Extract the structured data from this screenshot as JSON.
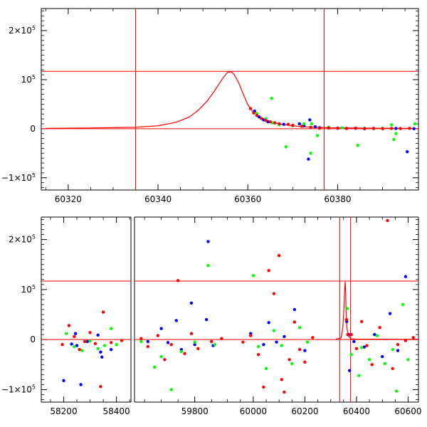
{
  "chart_data": [
    {
      "type": "scatter",
      "title": "",
      "xlabel": "",
      "ylabel": "",
      "xlim": [
        60314,
        60398
      ],
      "ylim": [
        -125000,
        245000
      ],
      "x_ticks": [
        {
          "value": 60320,
          "label": "60320"
        },
        {
          "value": 60340,
          "label": "60340"
        },
        {
          "value": 60360,
          "label": "60360"
        },
        {
          "value": 60380,
          "label": "60380"
        }
      ],
      "y_ticks": [
        {
          "value": 200000,
          "label": "2×10",
          "exp": "5"
        },
        {
          "value": 100000,
          "label": "10",
          "exp": "5"
        },
        {
          "value": 0,
          "label": "0",
          "exp": ""
        },
        {
          "value": -100000,
          "label": "−1×10",
          "exp": "5"
        }
      ],
      "hlines": [
        117000,
        0
      ],
      "vlines": [
        60335,
        60377
      ],
      "model_curve": {
        "color": "#ff0000",
        "points": [
          [
            60315,
            800
          ],
          [
            60325,
            1500
          ],
          [
            60335,
            3000
          ],
          [
            60340,
            6000
          ],
          [
            60344,
            13000
          ],
          [
            60347,
            24000
          ],
          [
            60349,
            38000
          ],
          [
            60351,
            57000
          ],
          [
            60352.5,
            76000
          ],
          [
            60353.5,
            90000
          ],
          [
            60354.5,
            104000
          ],
          [
            60355.5,
            115000
          ],
          [
            60356.3,
            116000
          ],
          [
            60357,
            110000
          ],
          [
            60358,
            93000
          ],
          [
            60359,
            70000
          ],
          [
            60360,
            49000
          ],
          [
            60361,
            36000
          ],
          [
            60363,
            22000
          ],
          [
            60365,
            14000
          ],
          [
            60368,
            8000
          ],
          [
            60372,
            4000
          ],
          [
            60378,
            2000
          ],
          [
            60388,
            1000
          ],
          [
            60397,
            800
          ]
        ]
      },
      "series": [
        {
          "color": "#0000ff",
          "points": [
            [
              60361.5,
              36000
            ],
            [
              60362.5,
              24000
            ],
            [
              60363.5,
              18000
            ],
            [
              60364.5,
              14000
            ],
            [
              60366,
              12000
            ],
            [
              60368,
              9000
            ],
            [
              60370,
              7000
            ],
            [
              60371.5,
              10000
            ],
            [
              60372.5,
              6000
            ],
            [
              60373.5,
              -62000
            ],
            [
              60373.8,
              18000
            ],
            [
              60375,
              4000
            ],
            [
              60376,
              2000
            ],
            [
              60378,
              2000
            ],
            [
              60380,
              1000
            ],
            [
              60382,
              500
            ],
            [
              60384,
              1000
            ],
            [
              60386,
              0
            ],
            [
              60388,
              500
            ],
            [
              60390,
              800
            ],
            [
              60393,
              600
            ],
            [
              60395.5,
              -47000
            ],
            [
              60397,
              0
            ]
          ]
        },
        {
          "color": "#00ff00",
          "points": [
            [
              60362,
              31000
            ],
            [
              60364,
              20000
            ],
            [
              60365.3,
              62000
            ],
            [
              60365.5,
              12000
            ],
            [
              60367,
              8000
            ],
            [
              60368.5,
              -37000
            ],
            [
              60370,
              6000
            ],
            [
              60372.5,
              10000
            ],
            [
              60374,
              -50000
            ],
            [
              60374.2,
              10000
            ],
            [
              60375.5,
              -14000
            ],
            [
              60378,
              3000
            ],
            [
              60381,
              2000
            ],
            [
              60384.5,
              -34000
            ],
            [
              60386,
              1000
            ],
            [
              60388,
              0
            ],
            [
              60390,
              1000
            ],
            [
              60392,
              8000
            ],
            [
              60392.5,
              -22000
            ],
            [
              60393,
              -10000
            ],
            [
              60397.2,
              10000
            ]
          ]
        },
        {
          "color": "#ff0000",
          "points": [
            [
              60360.6,
              41000
            ],
            [
              60361.3,
              32000
            ],
            [
              60362,
              27000
            ],
            [
              60363,
              21000
            ],
            [
              60364,
              17000
            ],
            [
              60365,
              14000
            ],
            [
              60366,
              12000
            ],
            [
              60367,
              10000
            ],
            [
              60369,
              9000
            ],
            [
              60370,
              7000
            ],
            [
              60372,
              5000
            ],
            [
              60374,
              3000
            ],
            [
              60376,
              1000
            ],
            [
              60378,
              1500
            ],
            [
              60380,
              1000
            ],
            [
              60382,
              500
            ],
            [
              60384,
              800
            ],
            [
              60386,
              200
            ],
            [
              60388,
              500
            ],
            [
              60390,
              0
            ],
            [
              60392,
              600
            ],
            [
              60394,
              400
            ],
            [
              60396,
              800
            ]
          ]
        }
      ]
    },
    {
      "type": "scatter",
      "title": "",
      "xlabel": "",
      "ylabel": "",
      "ylim": [
        -125000,
        245000
      ],
      "y_ticks": [
        {
          "value": 200000,
          "label": "2×10",
          "exp": "5"
        },
        {
          "value": 100000,
          "label": "10",
          "exp": "5"
        },
        {
          "value": 0,
          "label": "0",
          "exp": ""
        },
        {
          "value": -100000,
          "label": "−1×10",
          "exp": "5"
        }
      ],
      "segments": [
        {
          "xlim": [
            58115,
            58455
          ],
          "x_ticks": [
            {
              "value": 58200,
              "label": "58200"
            },
            {
              "value": 58400,
              "label": "58400"
            }
          ]
        },
        {
          "xlim": [
            59620,
            59890
          ],
          "x_ticks": [
            {
              "value": 59800,
              "label": "59800"
            }
          ]
        },
        {
          "xlim": [
            59890,
            60640
          ],
          "x_ticks": [
            {
              "value": 60000,
              "label": "60000"
            },
            {
              "value": 60200,
              "label": "60200"
            },
            {
              "value": 60400,
              "label": "60400"
            },
            {
              "value": 60600,
              "label": "60600"
            }
          ]
        }
      ],
      "hlines": [
        117000,
        0
      ],
      "vlines": [
        60335,
        60377
      ],
      "model_curve": {
        "color": "#ff0000",
        "points": [
          [
            60320,
            1000
          ],
          [
            60340,
            3000
          ],
          [
            60347,
            24000
          ],
          [
            60352,
            70000
          ],
          [
            60354,
            100000
          ],
          [
            60356,
            116000
          ],
          [
            60358,
            93000
          ],
          [
            60360,
            49000
          ],
          [
            60363,
            22000
          ],
          [
            60370,
            6000
          ],
          [
            60380,
            1500
          ],
          [
            60400,
            800
          ],
          [
            60640,
            500
          ]
        ]
      },
      "series": [
        {
          "color": "#0000ff",
          "points": [
            [
              58200,
              -82000
            ],
            [
              58230,
              -9000
            ],
            [
              58245,
              12000
            ],
            [
              58250,
              -12000
            ],
            [
              58265,
              -90000
            ],
            [
              58290,
              -4000
            ],
            [
              58330,
              9000
            ],
            [
              58340,
              -25000
            ],
            [
              58345,
              -35000
            ],
            [
              58380,
              -20000
            ],
            [
              59660,
              -4000
            ],
            [
              59700,
              22000
            ],
            [
              59720,
              -6000
            ],
            [
              59745,
              38000
            ],
            [
              59760,
              -20000
            ],
            [
              59790,
              73000
            ],
            [
              59800,
              -10000
            ],
            [
              59835,
              40000
            ],
            [
              59840,
              196000
            ],
            [
              59855,
              -12000
            ],
            [
              59990,
              12000
            ],
            [
              60040,
              -10000
            ],
            [
              60060,
              34000
            ],
            [
              60090,
              -5000
            ],
            [
              60120,
              6000
            ],
            [
              60160,
              60000
            ],
            [
              60200,
              -22000
            ],
            [
              60362,
              36000
            ],
            [
              60370,
              10000
            ],
            [
              60373,
              -62000
            ],
            [
              60390,
              -4000
            ],
            [
              60430,
              -15000
            ],
            [
              60470,
              10000
            ],
            [
              60500,
              -34000
            ],
            [
              60530,
              52000
            ],
            [
              60560,
              -22000
            ],
            [
              60590,
              126000
            ]
          ]
        },
        {
          "color": "#00ff00",
          "points": [
            [
              58210,
              12000
            ],
            [
              58240,
              -14000
            ],
            [
              58270,
              -22000
            ],
            [
              58300,
              -3000
            ],
            [
              58330,
              -18000
            ],
            [
              58355,
              -12000
            ],
            [
              58380,
              22000
            ],
            [
              58400,
              -10000
            ],
            [
              59640,
              -4000
            ],
            [
              59680,
              -55000
            ],
            [
              59700,
              -34000
            ],
            [
              59730,
              -100000
            ],
            [
              59760,
              -24000
            ],
            [
              59800,
              -5000
            ],
            [
              59840,
              148000
            ],
            [
              59860,
              -10000
            ],
            [
              60000,
              128000
            ],
            [
              60020,
              -14000
            ],
            [
              60050,
              -58000
            ],
            [
              60080,
              18000
            ],
            [
              60110,
              -12000
            ],
            [
              60150,
              -48000
            ],
            [
              60180,
              24000
            ],
            [
              60210,
              -5000
            ],
            [
              60365,
              62000
            ],
            [
              60380,
              -30000
            ],
            [
              60410,
              -72000
            ],
            [
              60420,
              -16000
            ],
            [
              60450,
              -40000
            ],
            [
              60480,
              8000
            ],
            [
              60510,
              -48000
            ],
            [
              60540,
              -20000
            ],
            [
              60555,
              -103000
            ],
            [
              60580,
              70000
            ],
            [
              60600,
              -40000
            ]
          ]
        },
        {
          "color": "#ff0000",
          "points": [
            [
              58195,
              -10000
            ],
            [
              58220,
              28000
            ],
            [
              58240,
              6000
            ],
            [
              58260,
              -20000
            ],
            [
              58280,
              -4000
            ],
            [
              58300,
              14000
            ],
            [
              58320,
              -8000
            ],
            [
              58350,
              55000
            ],
            [
              58340,
              -94000
            ],
            [
              58380,
              -6000
            ],
            [
              58420,
              -2000
            ],
            [
              59640,
              2000
            ],
            [
              59660,
              -14000
            ],
            [
              59690,
              8000
            ],
            [
              59710,
              -40000
            ],
            [
              59730,
              -10000
            ],
            [
              59750,
              118000
            ],
            [
              59770,
              -28000
            ],
            [
              59790,
              12000
            ],
            [
              59810,
              -18000
            ],
            [
              59850,
              -4000
            ],
            [
              59880,
              2000
            ],
            [
              59960,
              -5000
            ],
            [
              59990,
              8000
            ],
            [
              60020,
              -30000
            ],
            [
              60040,
              -95000
            ],
            [
              60060,
              138000
            ],
            [
              60080,
              92000
            ],
            [
              60100,
              168000
            ],
            [
              60110,
              -80000
            ],
            [
              60120,
              -105000
            ],
            [
              60140,
              -40000
            ],
            [
              60160,
              35000
            ],
            [
              60180,
              -20000
            ],
            [
              60200,
              -45000
            ],
            [
              60230,
              4000
            ],
            [
              60361,
              40000
            ],
            [
              60366,
              10000
            ],
            [
              60380,
              10000
            ],
            [
              60400,
              -18000
            ],
            [
              60420,
              36000
            ],
            [
              60440,
              -12000
            ],
            [
              60460,
              -50000
            ],
            [
              60490,
              24000
            ],
            [
              60520,
              238000
            ],
            [
              60540,
              -58000
            ],
            [
              60560,
              -10000
            ],
            [
              60590,
              -2000
            ],
            [
              60620,
              4000
            ]
          ]
        }
      ]
    }
  ]
}
